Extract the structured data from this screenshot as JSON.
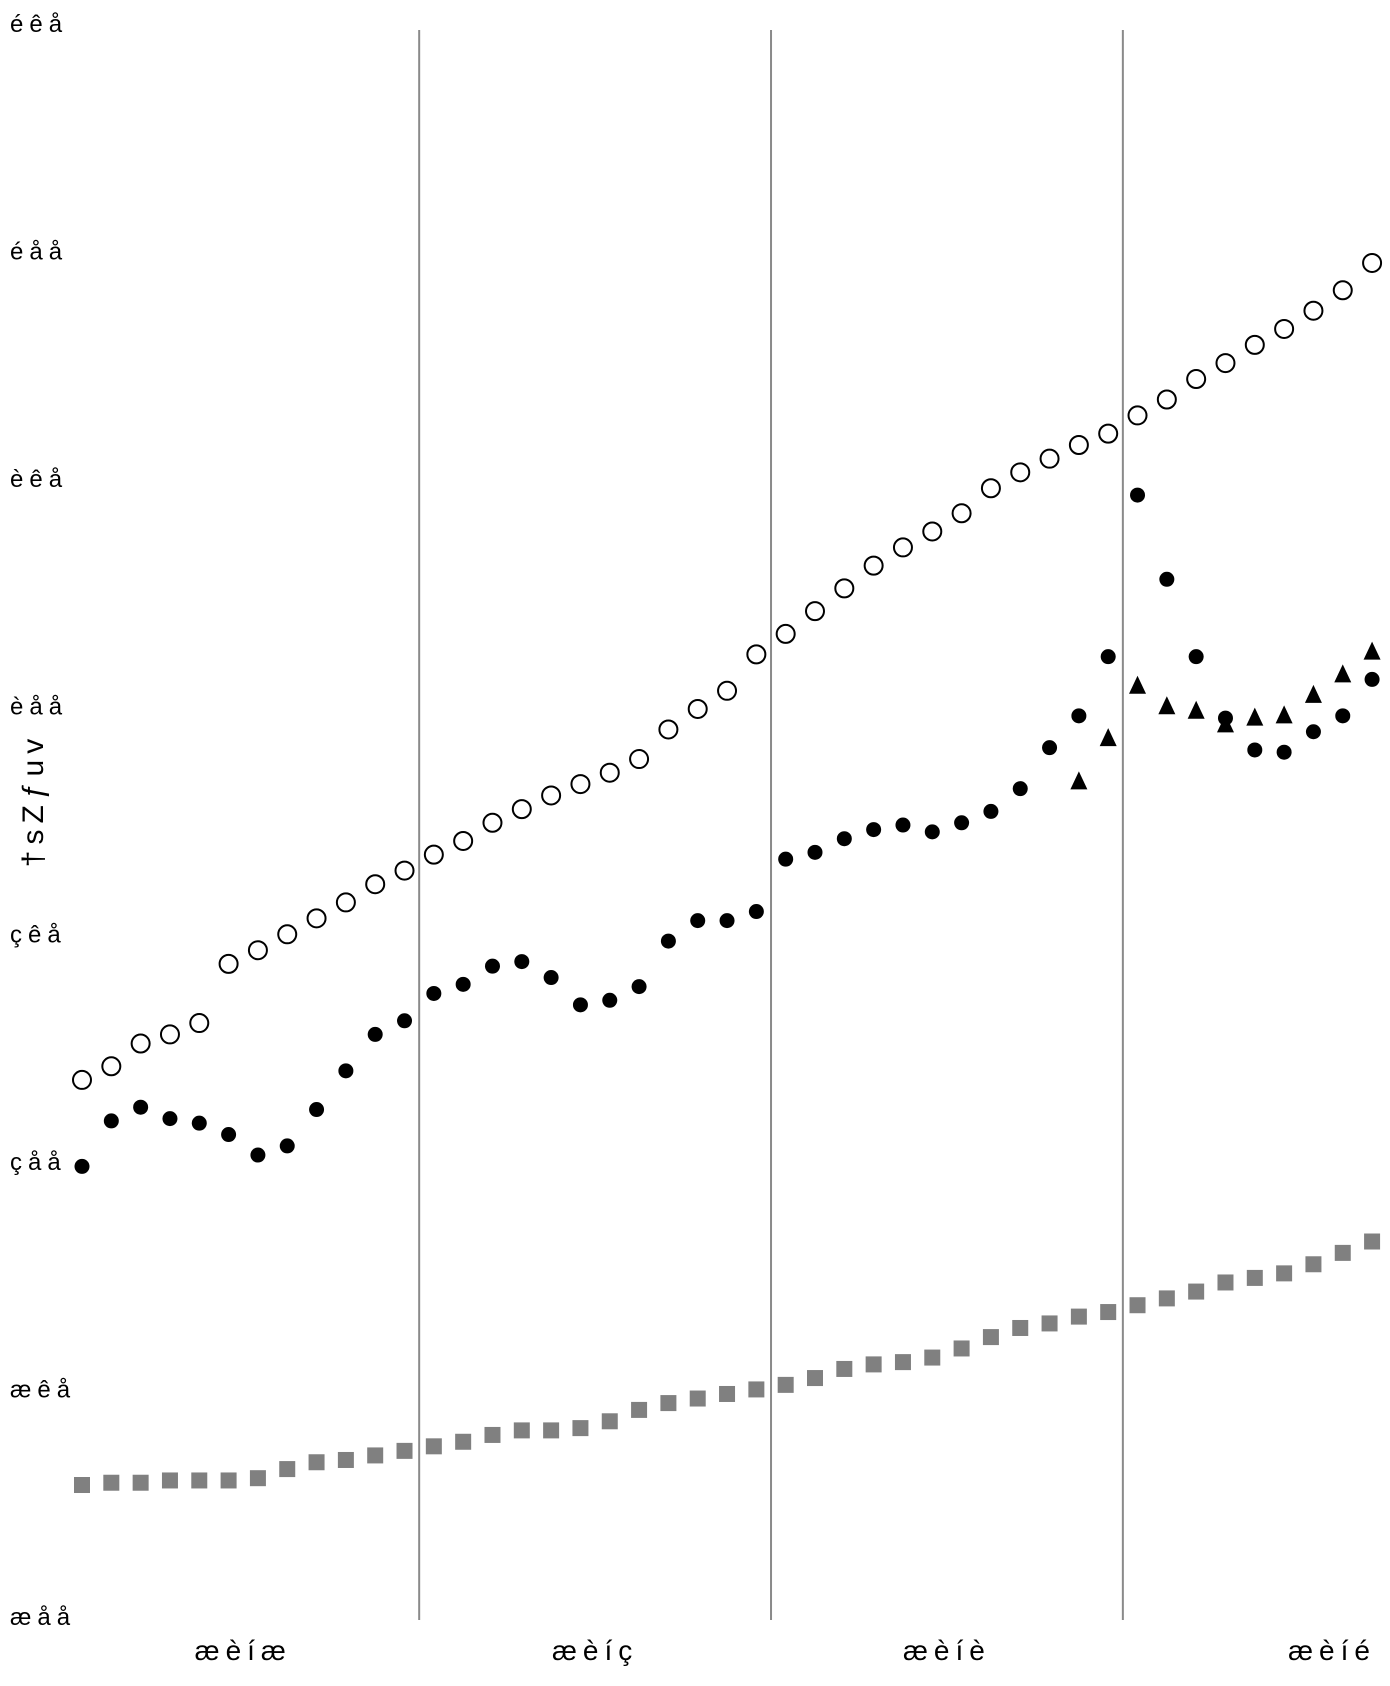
{
  "chart_data": {
    "type": "scatter",
    "title": "",
    "xlabel": "",
    "ylabel": "†sZƒuv",
    "y_tick_labels": [
      "æåå",
      "æêå",
      "çåå",
      "çêå",
      "èåå",
      "èêå",
      "éåå",
      "éêå"
    ],
    "x_tick_labels": [
      "æèíæ",
      "æèíç",
      "æèíè",
      "æèíé"
    ],
    "ylim": [
      0,
      7
    ],
    "x_points": 45,
    "grid": false,
    "vertical_separators_after_points": [
      12,
      24,
      36
    ],
    "series": [
      {
        "marker": "open-circle",
        "color": "#000000",
        "values": [
          2.36,
          2.42,
          2.52,
          2.56,
          2.61,
          2.87,
          2.93,
          3.0,
          3.07,
          3.14,
          3.22,
          3.28,
          3.35,
          3.41,
          3.49,
          3.55,
          3.61,
          3.66,
          3.71,
          3.77,
          3.9,
          3.99,
          4.07,
          4.23,
          4.32,
          4.42,
          4.52,
          4.62,
          4.7,
          4.77,
          4.85,
          4.96,
          5.03,
          5.09,
          5.15,
          5.2,
          5.28,
          5.35,
          5.44,
          5.51,
          5.59,
          5.66,
          5.74,
          5.83,
          5.95
        ]
      },
      {
        "marker": "filled-circle",
        "color": "#000000",
        "values": [
          1.98,
          2.18,
          2.24,
          2.19,
          2.17,
          2.12,
          2.03,
          2.07,
          2.23,
          2.4,
          2.56,
          2.62,
          2.74,
          2.78,
          2.86,
          2.88,
          2.81,
          2.69,
          2.71,
          2.77,
          2.97,
          3.06,
          3.06,
          3.1,
          3.33,
          3.36,
          3.42,
          3.46,
          3.48,
          3.45,
          3.49,
          3.54,
          3.64,
          3.82,
          3.96,
          4.22,
          4.93,
          4.56,
          4.22,
          3.95,
          3.81,
          3.8,
          3.89,
          3.96,
          4.12
        ]
      },
      {
        "marker": "filled-triangle",
        "color": "#000000",
        "start_index": 34,
        "values": [
          3.67,
          3.86,
          4.09,
          4.0,
          3.98,
          3.92,
          3.95,
          3.96,
          4.05,
          4.14,
          4.24
        ]
      },
      {
        "marker": "gray-square",
        "color": "#808080",
        "values": [
          0.58,
          0.59,
          0.59,
          0.6,
          0.6,
          0.6,
          0.61,
          0.65,
          0.68,
          0.69,
          0.71,
          0.73,
          0.75,
          0.77,
          0.8,
          0.82,
          0.82,
          0.83,
          0.86,
          0.91,
          0.94,
          0.96,
          0.98,
          1.0,
          1.02,
          1.05,
          1.09,
          1.11,
          1.12,
          1.14,
          1.18,
          1.23,
          1.27,
          1.29,
          1.32,
          1.34,
          1.37,
          1.4,
          1.43,
          1.47,
          1.49,
          1.51,
          1.55,
          1.6,
          1.65
        ]
      }
    ]
  }
}
